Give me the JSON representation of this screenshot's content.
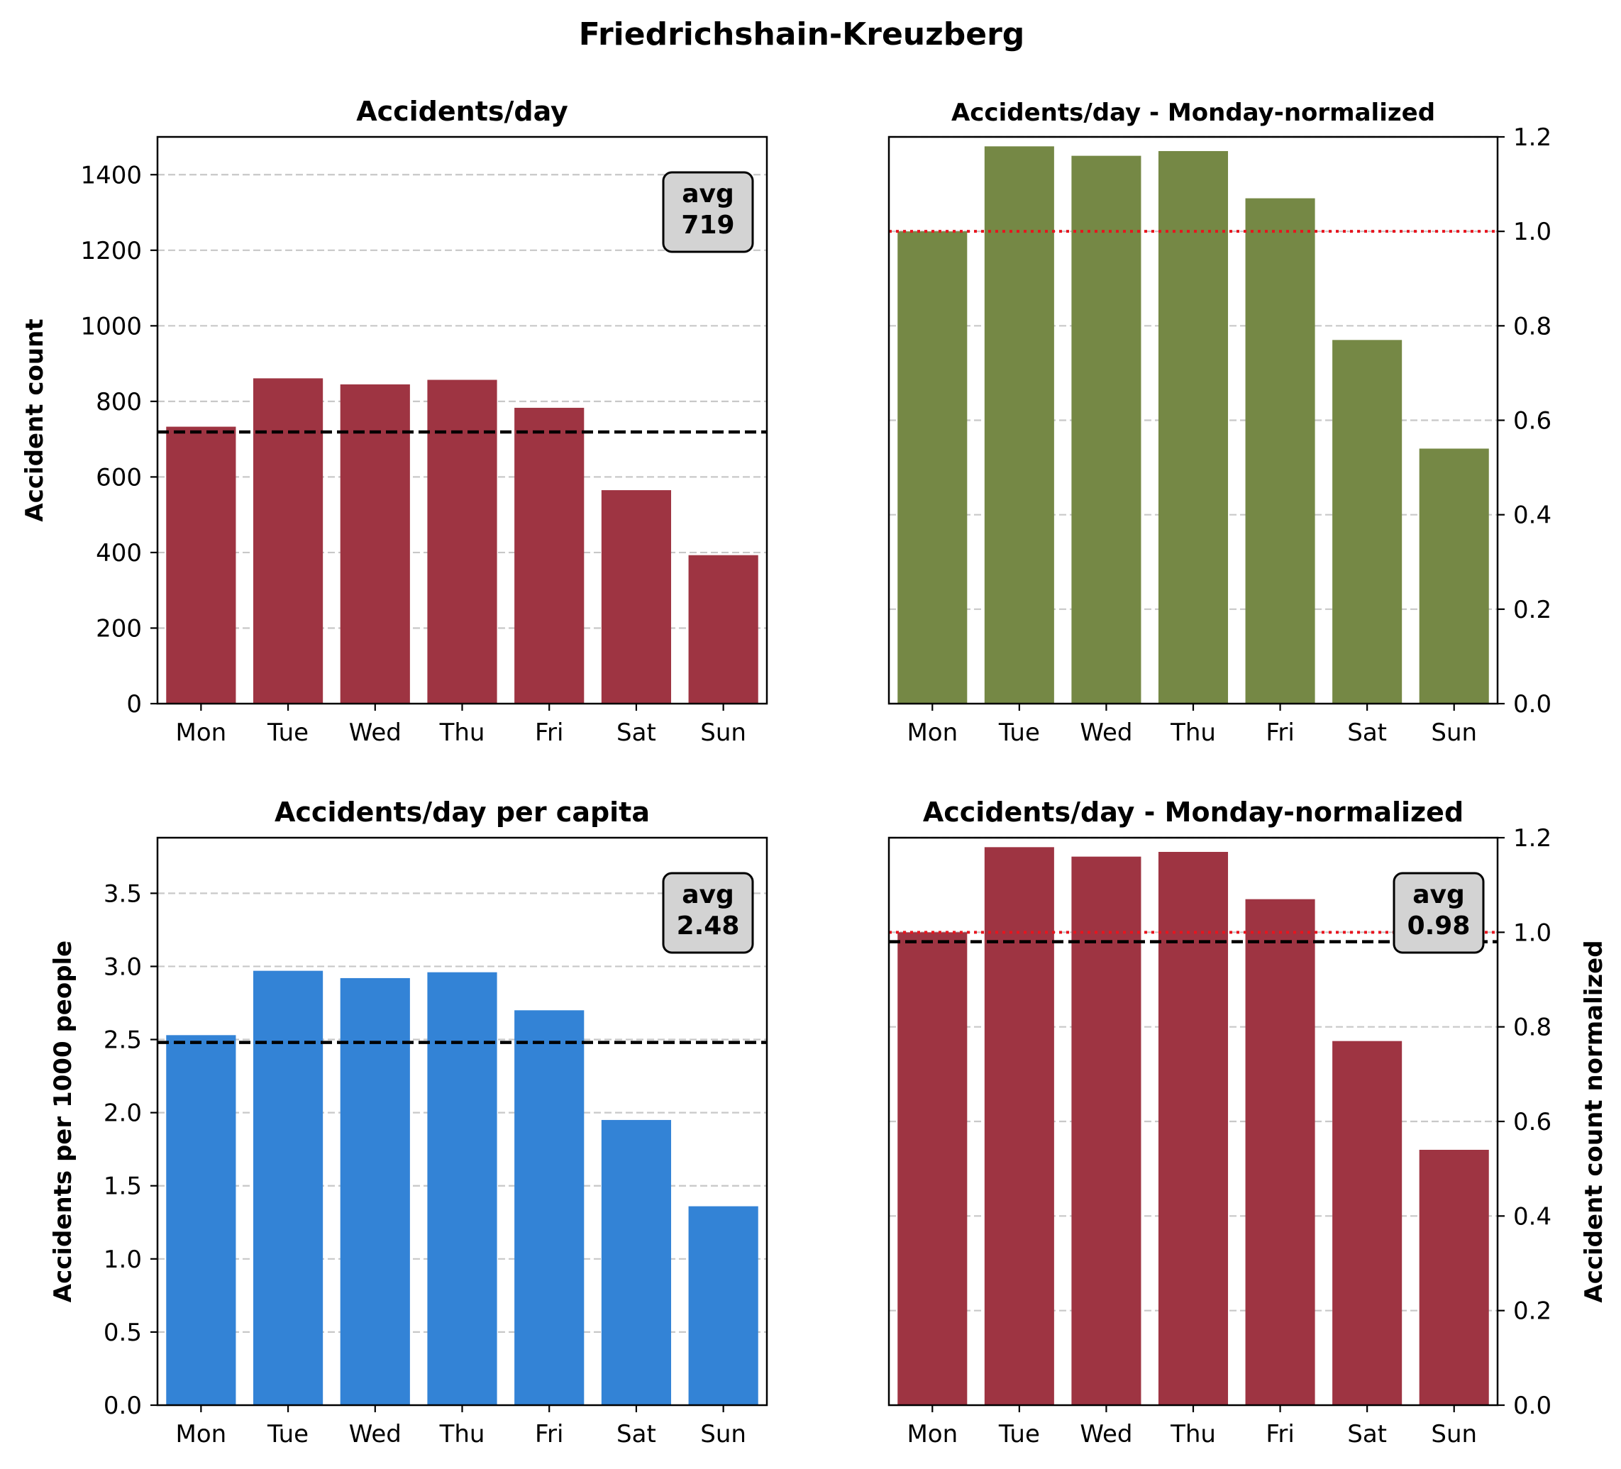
{
  "figure": {
    "suptitle": "Friedrichshain-Kreuzberg"
  },
  "colors": {
    "crimson": "#9e3442",
    "olive": "#758845",
    "blue": "#3383d6",
    "grid": "#c8c8c8",
    "mean_line": "#000000",
    "reference_line": "#e8141e",
    "annotation_bg": "#d3d3d3"
  },
  "chart_data": [
    {
      "type": "bar",
      "title": "Accidents/day",
      "xlabel": "",
      "ylabel": "Accident count",
      "categories": [
        "Mon",
        "Tue",
        "Wed",
        "Thu",
        "Fri",
        "Sat",
        "Sun"
      ],
      "values": [
        733,
        861,
        845,
        857,
        783,
        565,
        393
      ],
      "ylim": [
        0,
        1500
      ],
      "yticks": [
        0,
        200,
        400,
        600,
        800,
        1000,
        1200,
        1400
      ],
      "ytick_labels": [
        "0",
        "200",
        "400",
        "600",
        "800",
        "1000",
        "1200",
        "1400"
      ],
      "y_axis_side": "left",
      "grid": "y-dashed",
      "bar_color": "crimson",
      "hlines": [
        {
          "y": 719,
          "style": "dashed",
          "color": "mean_line"
        }
      ],
      "annotation": {
        "lines": [
          "avg",
          "719"
        ],
        "placement": "top-right"
      }
    },
    {
      "type": "bar",
      "title": "Accidents/day - Monday-normalized",
      "xlabel": "",
      "ylabel": "",
      "categories": [
        "Mon",
        "Tue",
        "Wed",
        "Thu",
        "Fri",
        "Sat",
        "Sun"
      ],
      "values": [
        1.0,
        1.18,
        1.16,
        1.17,
        1.07,
        0.77,
        0.54
      ],
      "ylim": [
        0,
        1.2
      ],
      "yticks": [
        0,
        0.2,
        0.4,
        0.6,
        0.8,
        1.0,
        1.2
      ],
      "ytick_labels": [
        "0.0",
        "0.2",
        "0.4",
        "0.6",
        "0.8",
        "1.0",
        "1.2"
      ],
      "y_axis_side": "right",
      "grid": "y-dashed",
      "bar_color": "olive",
      "hlines": [
        {
          "y": 1.0,
          "style": "dotted",
          "color": "reference_line"
        }
      ]
    },
    {
      "type": "bar",
      "title": "Accidents/day per capita",
      "xlabel": "",
      "ylabel": "Accidents per 1000 people",
      "categories": [
        "Mon",
        "Tue",
        "Wed",
        "Thu",
        "Fri",
        "Sat",
        "Sun"
      ],
      "values": [
        2.53,
        2.97,
        2.92,
        2.96,
        2.7,
        1.95,
        1.36
      ],
      "ylim": [
        0,
        3.88
      ],
      "yticks": [
        0,
        0.5,
        1.0,
        1.5,
        2.0,
        2.5,
        3.0,
        3.5
      ],
      "ytick_labels": [
        "0.0",
        "0.5",
        "1.0",
        "1.5",
        "2.0",
        "2.5",
        "3.0",
        "3.5"
      ],
      "y_axis_side": "left",
      "grid": "y-dashed",
      "bar_color": "blue",
      "hlines": [
        {
          "y": 2.48,
          "style": "dashed",
          "color": "mean_line"
        }
      ],
      "annotation": {
        "lines": [
          "avg",
          "2.48"
        ],
        "placement": "top-right"
      }
    },
    {
      "type": "bar",
      "title": "Accidents/day - Monday-normalized",
      "xlabel": "",
      "ylabel": "Accident count normalized",
      "categories": [
        "Mon",
        "Tue",
        "Wed",
        "Thu",
        "Fri",
        "Sat",
        "Sun"
      ],
      "values": [
        1.0,
        1.18,
        1.16,
        1.17,
        1.07,
        0.77,
        0.54
      ],
      "ylim": [
        0,
        1.2
      ],
      "yticks": [
        0,
        0.2,
        0.4,
        0.6,
        0.8,
        1.0,
        1.2
      ],
      "ytick_labels": [
        "0.0",
        "0.2",
        "0.4",
        "0.6",
        "0.8",
        "1.0",
        "1.2"
      ],
      "y_axis_side": "right",
      "grid": "y-dashed",
      "bar_color": "crimson",
      "hlines": [
        {
          "y": 1.0,
          "style": "dotted",
          "color": "reference_line"
        },
        {
          "y": 0.98,
          "style": "dashed",
          "color": "mean_line"
        }
      ],
      "annotation": {
        "lines": [
          "avg",
          "0.98"
        ],
        "placement": "top-right"
      }
    }
  ]
}
